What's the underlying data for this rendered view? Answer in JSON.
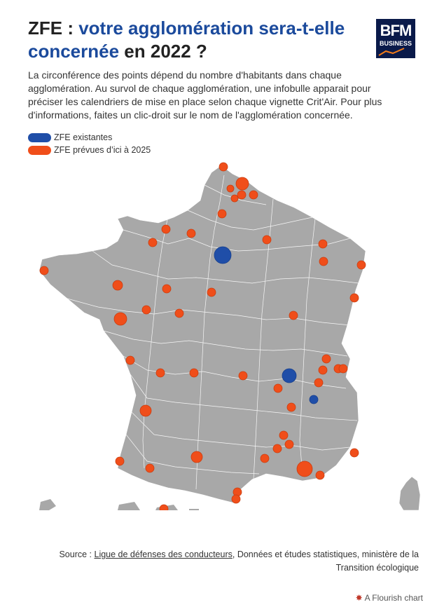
{
  "header": {
    "title_lead": "ZFE : ",
    "title_accent": "votre agglomération sera-t-elle concernée",
    "title_tail": " en 2022 ?",
    "logo_line1": "BFM",
    "logo_line2": "BUSINESS"
  },
  "description": "La circonférence des points dépend du nombre d'habitants dans chaque agglomération. Au survol de chaque agglomération, une infobulle apparait pour préciser les calendriers de mise en place selon chaque vignette Crit'Air. Pour plus d'informations, faites un clic-droit sur le nom de l'agglomération concernée.",
  "legend": [
    {
      "label": "ZFE existantes",
      "color": "#1f4ea8"
    },
    {
      "label": "ZFE prévues d’ici à 2025",
      "color": "#f04e1a"
    }
  ],
  "colors": {
    "land": "#a8a8a8",
    "border": "#ffffff"
  },
  "source": {
    "prefix": "Source : ",
    "link": "Ligue de défenses des conducteurs",
    "suffix": ", Données et études statistiques, ministère de la Transition écologique"
  },
  "credit": "A Flourish chart"
}
